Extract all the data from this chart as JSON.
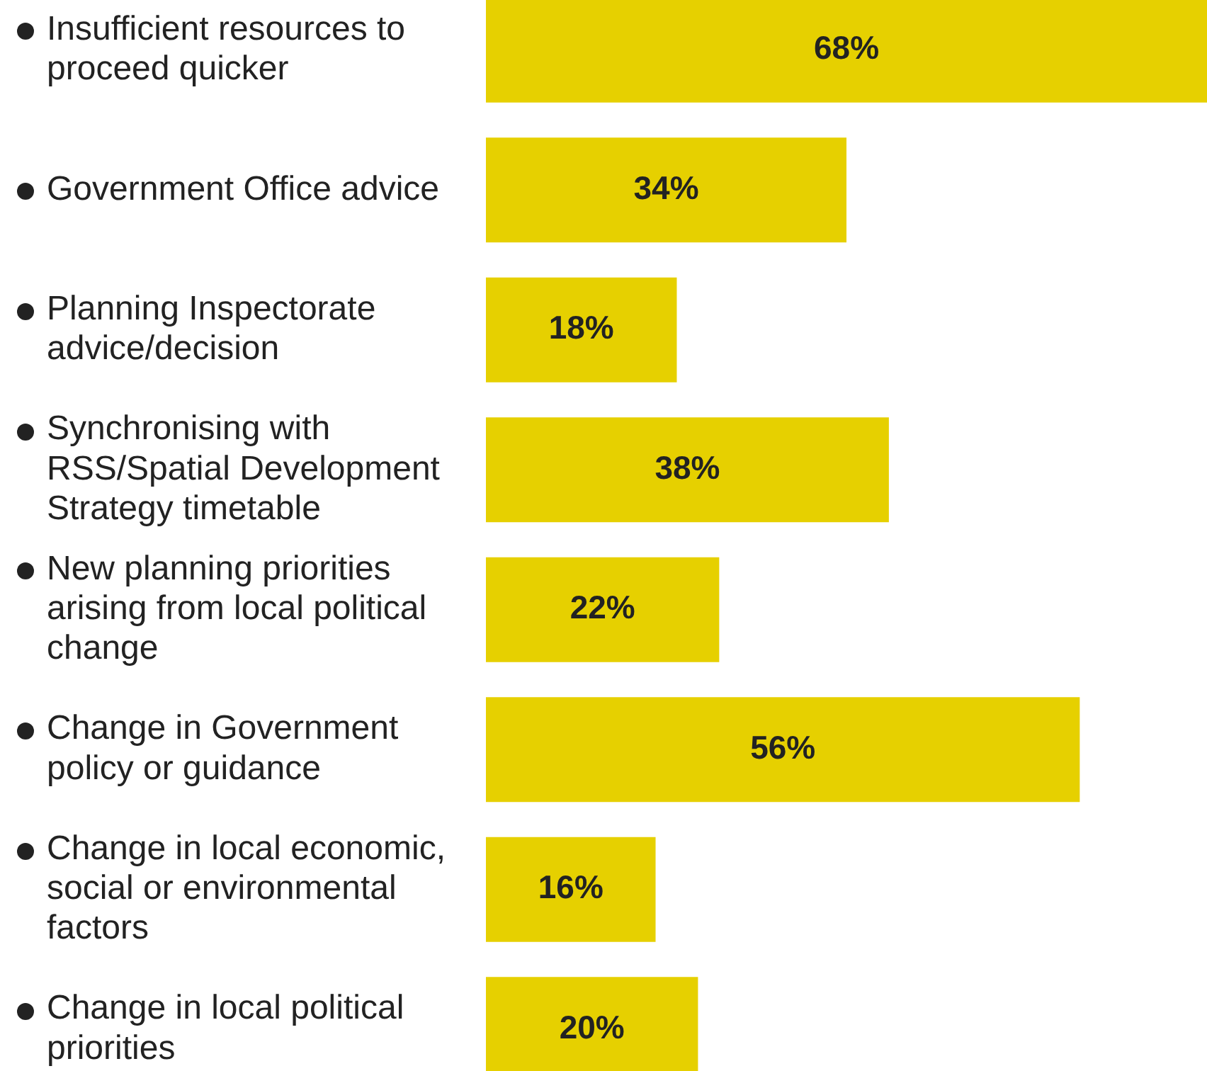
{
  "chart_data": {
    "type": "bar",
    "orientation": "horizontal",
    "categories": [
      "Insufficient resources to proceed quicker",
      "Government Office advice",
      "Planning Inspectorate advice/decision",
      "Synchronising with RSS/Spatial Development Strategy timetable",
      "New planning priorities arising from local political change",
      "Change in Government policy or guidance",
      "Change in local economic, social or environmental factors",
      "Change in local political priorities"
    ],
    "values": [
      68,
      34,
      18,
      38,
      22,
      56,
      16,
      20
    ],
    "value_labels": [
      "68%",
      "34%",
      "18%",
      "38%",
      "22%",
      "56%",
      "16%",
      "20%"
    ],
    "color": "#e6d000",
    "xlim": [
      0,
      68
    ],
    "tick_labels": "y",
    "legend": false
  }
}
